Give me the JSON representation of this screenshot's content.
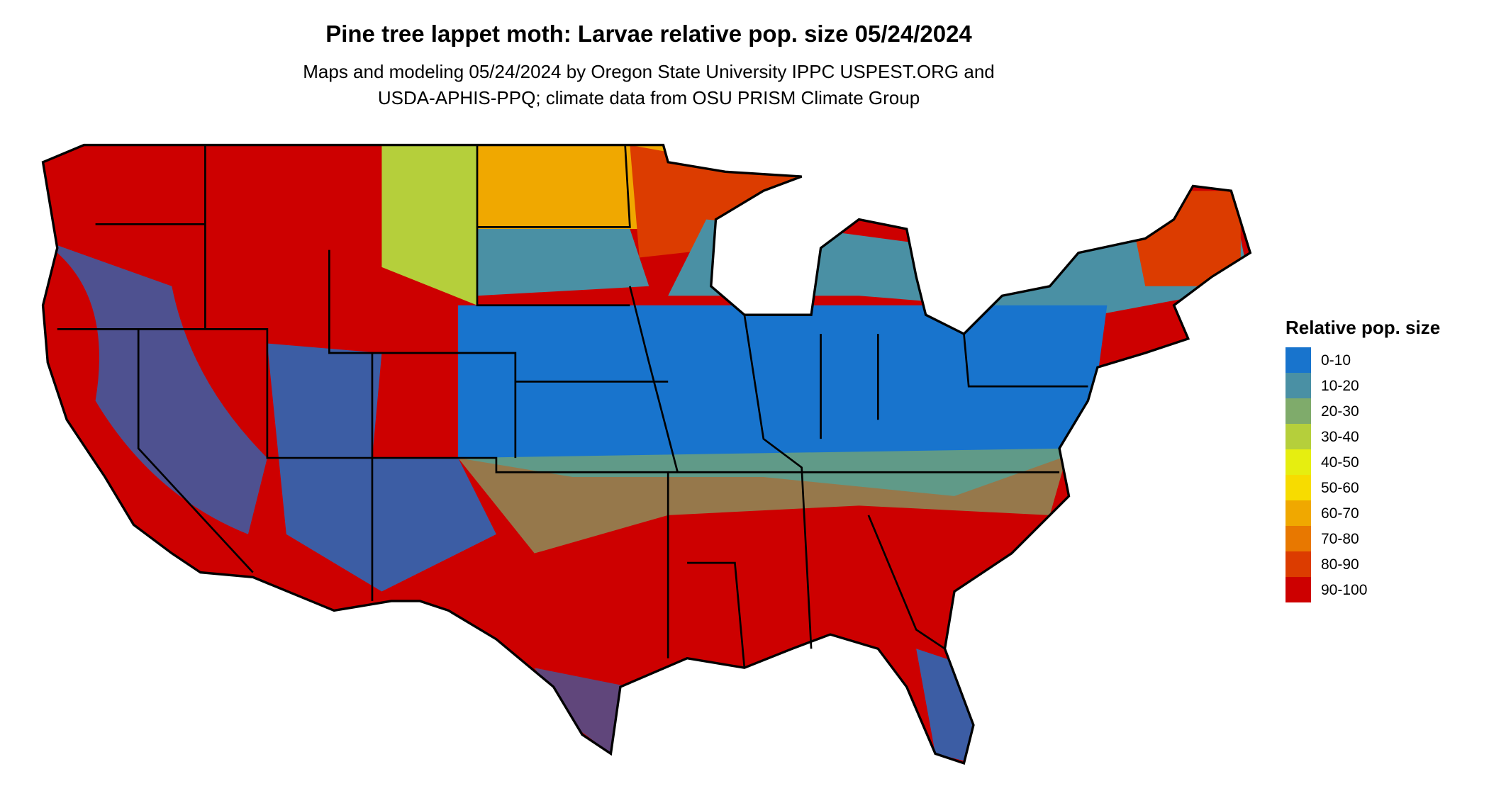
{
  "title": "Pine tree lappet moth: Larvae relative pop. size 05/24/2024",
  "subtitle": [
    "Maps and modeling 05/24/2024 by Oregon State University IPPC USPEST.ORG and",
    "USDA-APHIS-PPQ; climate data from OSU PRISM Climate Group"
  ],
  "legend": {
    "title": "Relative pop. size",
    "items": [
      {
        "label": "0-10",
        "color": "#1874cd"
      },
      {
        "label": "10-20",
        "color": "#4a90a4"
      },
      {
        "label": "20-30",
        "color": "#7fab6b"
      },
      {
        "label": "30-40",
        "color": "#b5cf3b"
      },
      {
        "label": "40-50",
        "color": "#e6ee10"
      },
      {
        "label": "50-60",
        "color": "#f7dc00"
      },
      {
        "label": "60-70",
        "color": "#f0a800"
      },
      {
        "label": "70-80",
        "color": "#e87800"
      },
      {
        "label": "80-90",
        "color": "#dc3c00"
      },
      {
        "label": "90-100",
        "color": "#cd0000"
      }
    ]
  }
}
